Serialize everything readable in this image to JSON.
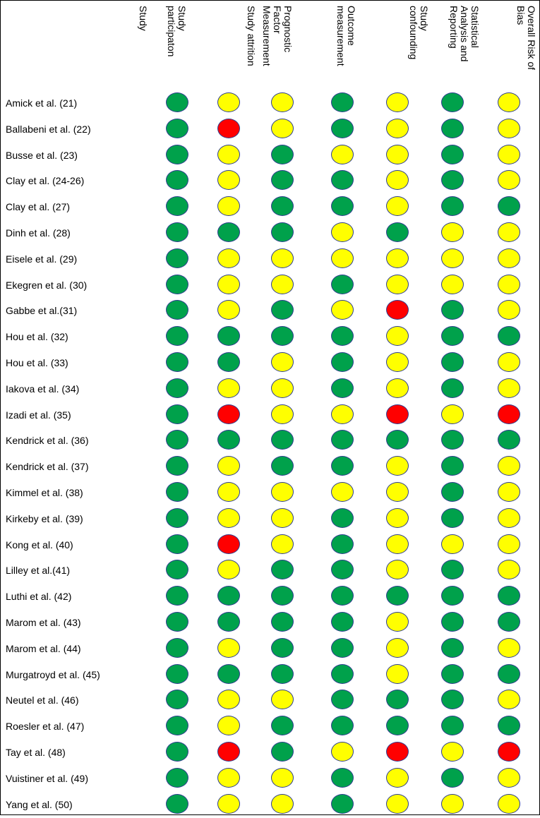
{
  "headers": [
    "Study",
    "Study\nparticipaton",
    "Study attrition",
    "Prognostic\nFactor\nMeasurement",
    "Outcome\nmeasurement",
    "Study\nconfounding",
    "Statistical\nAnalysis and\nReporting",
    "Overall Risk of\nBias"
  ],
  "colors": {
    "green": "#00a14b",
    "yellow": "#ffff00",
    "red": "#ff0000",
    "border": "#2f3e8f"
  },
  "rows": [
    {
      "study": "Amick et al. (21)",
      "ratings": [
        "green",
        "yellow",
        "yellow",
        "green",
        "yellow",
        "green",
        "yellow"
      ]
    },
    {
      "study": "Ballabeni et al. (22)",
      "ratings": [
        "green",
        "red",
        "yellow",
        "green",
        "yellow",
        "green",
        "yellow"
      ]
    },
    {
      "study": "Busse et al. (23)",
      "ratings": [
        "green",
        "yellow",
        "green",
        "yellow",
        "yellow",
        "green",
        "yellow"
      ]
    },
    {
      "study": "Clay et al. (24-26)",
      "ratings": [
        "green",
        "yellow",
        "green",
        "green",
        "yellow",
        "green",
        "yellow"
      ]
    },
    {
      "study": "Clay et al. (27)",
      "ratings": [
        "green",
        "yellow",
        "green",
        "green",
        "yellow",
        "green",
        "green"
      ]
    },
    {
      "study": "Dinh et al. (28)",
      "ratings": [
        "green",
        "green",
        "green",
        "yellow",
        "green",
        "yellow",
        "yellow"
      ]
    },
    {
      "study": "Eisele et al. (29)",
      "ratings": [
        "green",
        "yellow",
        "yellow",
        "yellow",
        "yellow",
        "yellow",
        "yellow"
      ]
    },
    {
      "study": "Ekegren et al. (30)",
      "ratings": [
        "green",
        "yellow",
        "yellow",
        "green",
        "yellow",
        "yellow",
        "yellow"
      ]
    },
    {
      "study": "Gabbe et al.(31)",
      "ratings": [
        "green",
        "yellow",
        "green",
        "yellow",
        "red",
        "green",
        "yellow"
      ]
    },
    {
      "study": "Hou et al. (32)",
      "ratings": [
        "green",
        "green",
        "green",
        "green",
        "yellow",
        "green",
        "green"
      ]
    },
    {
      "study": "Hou et al. (33)",
      "ratings": [
        "green",
        "green",
        "yellow",
        "green",
        "yellow",
        "green",
        "yellow"
      ]
    },
    {
      "study": "Iakova et al. (34)",
      "ratings": [
        "green",
        "yellow",
        "yellow",
        "green",
        "yellow",
        "green",
        "yellow"
      ]
    },
    {
      "study": "Izadi et al. (35)",
      "ratings": [
        "green",
        "red",
        "yellow",
        "yellow",
        "red",
        "yellow",
        "red"
      ]
    },
    {
      "study": "Kendrick et al. (36)",
      "ratings": [
        "green",
        "green",
        "green",
        "green",
        "green",
        "green",
        "green"
      ]
    },
    {
      "study": "Kendrick et al. (37)",
      "ratings": [
        "green",
        "yellow",
        "green",
        "green",
        "yellow",
        "green",
        "yellow"
      ]
    },
    {
      "study": "Kimmel et al. (38)",
      "ratings": [
        "green",
        "yellow",
        "yellow",
        "yellow",
        "yellow",
        "green",
        "yellow"
      ]
    },
    {
      "study": "Kirkeby et al. (39)",
      "ratings": [
        "green",
        "yellow",
        "yellow",
        "green",
        "yellow",
        "green",
        "yellow"
      ]
    },
    {
      "study": "Kong et al. (40)",
      "ratings": [
        "green",
        "red",
        "yellow",
        "green",
        "yellow",
        "yellow",
        "yellow"
      ]
    },
    {
      "study": "Lilley et al.(41)",
      "ratings": [
        "green",
        "yellow",
        "green",
        "green",
        "yellow",
        "green",
        "yellow"
      ]
    },
    {
      "study": "Luthi et al. (42)",
      "ratings": [
        "green",
        "green",
        "green",
        "green",
        "green",
        "green",
        "green"
      ]
    },
    {
      "study": "Marom et al. (43)",
      "ratings": [
        "green",
        "green",
        "green",
        "green",
        "yellow",
        "green",
        "green"
      ]
    },
    {
      "study": "Marom et al. (44)",
      "ratings": [
        "green",
        "yellow",
        "green",
        "green",
        "yellow",
        "green",
        "yellow"
      ]
    },
    {
      "study": "Murgatroyd et al. (45)",
      "ratings": [
        "green",
        "green",
        "green",
        "green",
        "yellow",
        "green",
        "green"
      ]
    },
    {
      "study": "Neutel et al. (46)",
      "ratings": [
        "green",
        "yellow",
        "yellow",
        "green",
        "green",
        "green",
        "yellow"
      ]
    },
    {
      "study": "Roesler et al. (47)",
      "ratings": [
        "green",
        "yellow",
        "green",
        "green",
        "green",
        "green",
        "green"
      ]
    },
    {
      "study": "Tay et al. (48)",
      "ratings": [
        "green",
        "red",
        "green",
        "yellow",
        "red",
        "yellow",
        "red"
      ]
    },
    {
      "study": "Vuistiner et al. (49)",
      "ratings": [
        "green",
        "yellow",
        "yellow",
        "green",
        "yellow",
        "green",
        "yellow"
      ]
    },
    {
      "study": "Yang et al. (50)",
      "ratings": [
        "green",
        "yellow",
        "yellow",
        "green",
        "yellow",
        "yellow",
        "yellow"
      ]
    }
  ]
}
